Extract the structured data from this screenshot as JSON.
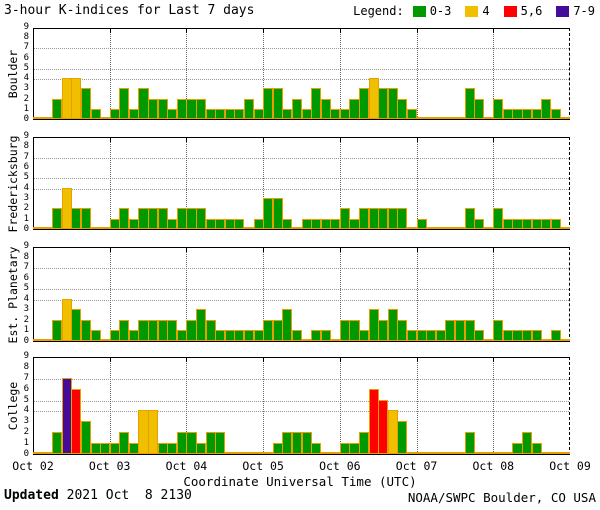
{
  "title": "3-hour K-indices for Last 7 days",
  "legend": {
    "label": "Legend:",
    "items": [
      {
        "label": "0-3",
        "color": "#009900",
        "range": [
          0,
          3
        ]
      },
      {
        "label": "4",
        "color": "#F0C000",
        "range": [
          4,
          4
        ]
      },
      {
        "label": "5,6",
        "color": "#FF0000",
        "range": [
          5,
          6
        ]
      },
      {
        "label": "7-9",
        "color": "#430D99",
        "range": [
          7,
          9
        ]
      }
    ]
  },
  "bar_border_color": "#E8A000",
  "x_axis": {
    "title": "Coordinate Universal Time (UTC)",
    "ticks": [
      "Oct 02",
      "Oct 03",
      "Oct 04",
      "Oct 05",
      "Oct 06",
      "Oct 07",
      "Oct 08",
      "Oct 09"
    ]
  },
  "y_axis": {
    "ticks": [
      0,
      1,
      2,
      3,
      4,
      5,
      6,
      7,
      8,
      9
    ],
    "dotted_levels": [
      4,
      5,
      7
    ],
    "max": 9
  },
  "footer": {
    "updated_label": "Updated",
    "updated_value": " 2021 Oct  8 2130",
    "source": "NOAA/SWPC Boulder, CO USA"
  },
  "chart_data": [
    {
      "type": "bar",
      "station": "Boulder",
      "x_start": "Oct 02",
      "x_end": "Oct 09",
      "bars_per_day": 8,
      "ylim": [
        0,
        9
      ],
      "values": [
        0,
        0,
        2,
        4,
        4,
        3,
        1,
        0,
        1,
        3,
        1,
        3,
        2,
        2,
        1,
        2,
        2,
        2,
        1,
        1,
        1,
        1,
        2,
        1,
        3,
        3,
        1,
        2,
        1,
        3,
        2,
        1,
        1,
        2,
        3,
        4,
        3,
        3,
        2,
        1,
        0,
        0,
        0,
        0,
        0,
        3,
        2,
        0,
        2,
        1,
        1,
        1,
        1,
        2,
        1,
        0
      ]
    },
    {
      "type": "bar",
      "station": "Fredericksburg",
      "x_start": "Oct 02",
      "x_end": "Oct 09",
      "bars_per_day": 8,
      "ylim": [
        0,
        9
      ],
      "values": [
        0,
        0,
        2,
        4,
        2,
        2,
        0,
        0,
        1,
        2,
        1,
        2,
        2,
        2,
        1,
        2,
        2,
        2,
        1,
        1,
        1,
        1,
        0,
        1,
        3,
        3,
        1,
        0,
        1,
        1,
        1,
        1,
        2,
        1,
        2,
        2,
        2,
        2,
        2,
        0,
        1,
        0,
        0,
        0,
        0,
        2,
        1,
        0,
        2,
        1,
        1,
        1,
        1,
        1,
        1,
        0
      ]
    },
    {
      "type": "bar",
      "station": "Est. Planetary",
      "x_start": "Oct 02",
      "x_end": "Oct 09",
      "bars_per_day": 8,
      "ylim": [
        0,
        9
      ],
      "values": [
        0,
        0,
        2,
        4,
        3,
        2,
        1,
        0,
        1,
        2,
        1,
        2,
        2,
        2,
        2,
        1,
        2,
        3,
        2,
        1,
        1,
        1,
        1,
        1,
        2,
        2,
        3,
        1,
        0,
        1,
        1,
        0,
        2,
        2,
        1,
        3,
        2,
        3,
        2,
        1,
        1,
        1,
        1,
        2,
        2,
        2,
        1,
        0,
        2,
        1,
        1,
        1,
        1,
        0,
        1,
        0
      ]
    },
    {
      "type": "bar",
      "station": "College",
      "x_start": "Oct 02",
      "x_end": "Oct 09",
      "bars_per_day": 8,
      "ylim": [
        0,
        9
      ],
      "values": [
        0,
        0,
        2,
        7,
        6,
        3,
        1,
        1,
        1,
        2,
        1,
        4,
        4,
        1,
        1,
        2,
        2,
        1,
        2,
        2,
        0,
        0,
        0,
        0,
        0,
        1,
        2,
        2,
        2,
        1,
        0,
        0,
        1,
        1,
        2,
        6,
        5,
        4,
        3,
        0,
        0,
        0,
        0,
        0,
        0,
        2,
        0,
        0,
        0,
        0,
        1,
        2,
        1,
        0,
        0,
        0
      ]
    }
  ]
}
